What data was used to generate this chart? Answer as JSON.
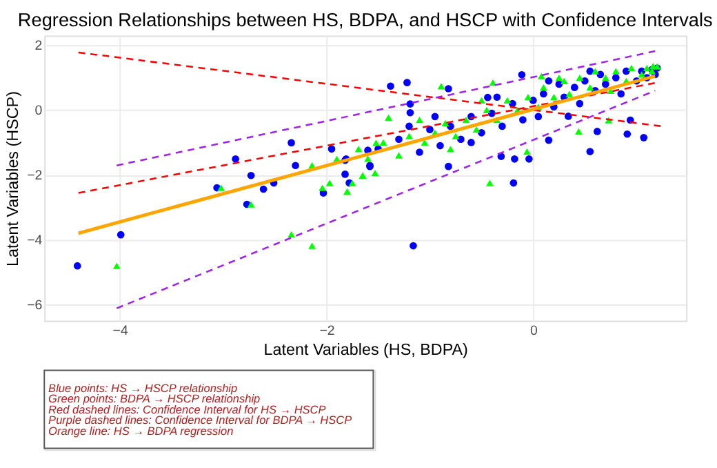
{
  "chart_data": {
    "type": "scatter",
    "title": "Regression Relationships between HS, BDPA, and HSCP with Confidence Intervals",
    "xlabel": "Latent Variables (HS, BDPA)",
    "ylabel": "Latent Variables (HSCP)",
    "xlim": [
      -4.73,
      1.48
    ],
    "ylim": [
      -6.5,
      2.3
    ],
    "xticks": [
      -4,
      -2,
      0
    ],
    "yticks": [
      2,
      0,
      -2,
      -4,
      -6
    ],
    "grid": true,
    "series": [
      {
        "marker": "circle",
        "color": "#0000ff",
        "x": [
          -4.41,
          -3.99,
          -2.34,
          -2.88,
          -2.73,
          -3.06,
          -2.77,
          -2.61,
          -2.51,
          -2.3,
          -1.95,
          -1.81,
          -1.82,
          -1.78,
          -2.03,
          -1.6,
          -1.58,
          -1.16,
          -0.19,
          0.55,
          1.07,
          0.91,
          0.94,
          -1.22,
          -1.38,
          -1.19,
          -1.19,
          -0.11,
          -0.31,
          -0.04,
          -0.18,
          0.15,
          -1.82,
          -1.58,
          -0.82,
          -0.82,
          -0.44,
          0.62,
          0.34,
          -1.5,
          -1.3,
          -1.1,
          -1.0,
          -0.9,
          -0.8,
          -0.7,
          -0.6,
          -0.5,
          -0.4,
          -0.3,
          -0.2,
          -0.1,
          0.0,
          0.05,
          0.1,
          0.2,
          0.25,
          0.3,
          0.4,
          0.45,
          0.5,
          0.6,
          0.65,
          0.7,
          0.8,
          0.85,
          0.9,
          1.0,
          1.05,
          1.1,
          1.15,
          1.2,
          1.18,
          -1.2,
          -0.95,
          -0.35,
          0.15,
          0.55,
          -0.6
        ],
        "values": [
          -4.81,
          -3.85,
          -1.01,
          -1.51,
          -2.02,
          -2.4,
          -2.91,
          -2.44,
          -2.25,
          -1.71,
          -1.2,
          -1.51,
          -1.98,
          -2.25,
          -2.56,
          -1.24,
          -1.71,
          -4.19,
          -2.25,
          -1.28,
          -0.85,
          -0.74,
          -0.31,
          0.85,
          0.74,
          0.19,
          -0.08,
          1.09,
          -1.43,
          -1.51,
          -1.51,
          -0.93,
          -1.55,
          -1.74,
          -1.74,
          0.66,
          0.39,
          -0.66,
          -0.19,
          -1.2,
          -0.9,
          -1.3,
          -0.6,
          -1.1,
          -0.5,
          -0.9,
          -0.2,
          -0.7,
          -0.1,
          -0.5,
          0.2,
          -0.3,
          0.3,
          -0.2,
          0.5,
          0.1,
          0.8,
          0.4,
          0.7,
          0.2,
          0.9,
          0.6,
          1.1,
          0.8,
          1.0,
          0.5,
          1.2,
          0.9,
          1.2,
          1.0,
          1.25,
          1.3,
          1.1,
          -0.5,
          -0.2,
          0.4,
          0.9,
          1.2,
          -1.0
        ]
      },
      {
        "marker": "triangle",
        "color": "#00ff00",
        "x": [
          -4.03,
          -3.02,
          -2.73,
          -2.34,
          -2.14,
          -2.14,
          -1.9,
          -1.97,
          -2.04,
          -1.75,
          -1.8,
          -1.69,
          -1.65,
          -1.53,
          -1.52,
          -0.42,
          -0.89,
          -0.39,
          -1.4,
          -1.8,
          -1.65,
          -0.06,
          0.73,
          1.16,
          0.08,
          0.44,
          -1.6,
          -1.45,
          -1.3,
          -1.2,
          -1.05,
          -0.95,
          -0.85,
          -0.75,
          -0.65,
          -0.55,
          -0.45,
          -0.35,
          -0.25,
          -0.15,
          -0.05,
          0.05,
          0.1,
          0.2,
          0.3,
          0.35,
          0.45,
          0.55,
          0.6,
          0.7,
          0.8,
          0.9,
          0.95,
          1.05,
          1.1,
          1.15,
          1.2,
          -1.1,
          -0.5,
          0.25,
          0.75,
          -0.8
        ],
        "values": [
          -4.81,
          -2.4,
          -2.91,
          -3.84,
          -4.19,
          -1.71,
          -1.51,
          -2.25,
          -2.4,
          -2.25,
          -2.52,
          -1.2,
          -2.02,
          -1.94,
          -1.01,
          -2.25,
          0.74,
          0.85,
          -0.23,
          -2.52,
          -2.02,
          -1.28,
          -0.31,
          1.36,
          1.05,
          -0.66,
          -1.5,
          -1.0,
          -1.4,
          -0.8,
          -1.0,
          -0.7,
          -0.4,
          -0.8,
          -0.3,
          -0.6,
          0.0,
          -0.3,
          0.3,
          0.0,
          0.4,
          0.1,
          0.7,
          0.4,
          0.9,
          0.5,
          1.0,
          0.7,
          1.2,
          1.0,
          1.2,
          0.9,
          1.3,
          1.1,
          1.3,
          1.2,
          1.35,
          -0.3,
          0.3,
          1.0,
          0.6,
          -1.2
        ]
      },
      {
        "type": "line",
        "line_style": "dashed",
        "color": "#ff0000",
        "x": [
          -4.4,
          1.25
        ],
        "values": [
          1.78,
          -0.5
        ]
      },
      {
        "type": "line",
        "line_style": "dashed",
        "color": "#ff0000",
        "x": [
          -4.4,
          1.2
        ],
        "values": [
          -2.56,
          0.85
        ]
      },
      {
        "type": "line",
        "line_style": "dashed",
        "color": "#a020f0",
        "x": [
          -4.03,
          1.18
        ],
        "values": [
          -1.71,
          1.82
        ]
      },
      {
        "type": "line",
        "line_style": "dashed",
        "color": "#a020f0",
        "x": [
          -4.03,
          1.18
        ],
        "values": [
          -6.12,
          0.6
        ]
      },
      {
        "type": "line",
        "line_style": "solid",
        "color": "#ffa500",
        "x": [
          -4.4,
          1.18
        ],
        "values": [
          -3.8,
          1.05
        ]
      }
    ],
    "annotations": [
      "Blue points: HS → HSCP relationship",
      "Green points: BDPA → HSCP relationship",
      "Red dashed lines: Confidence Interval for HS → HSCP",
      "Purple dashed lines: Confidence Interval for BDPA → HSCP",
      "Orange line: HS → BDPA regression"
    ]
  }
}
